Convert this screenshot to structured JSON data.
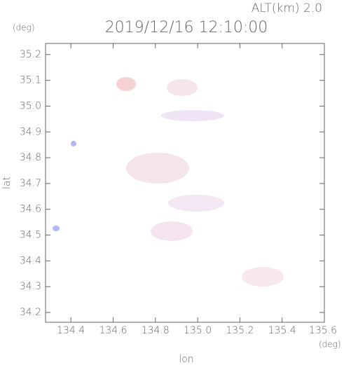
{
  "chart_data": {
    "type": "field",
    "title": "2019/12/16 12:10:00",
    "subtitle": "ALT(km) 2.0",
    "x_label": "lon",
    "y_label": "lat",
    "x_unit": "(deg)",
    "y_unit": "(deg)",
    "xlim": [
      134.28,
      135.6
    ],
    "ylim": [
      34.162,
      35.243
    ],
    "xticks": [
      134.4,
      134.6,
      134.8,
      {
        "value": 135.0,
        "label": "135.0"
      },
      135.2,
      135.4,
      135.6
    ],
    "yticks": [
      34.2,
      34.3,
      34.4,
      34.5,
      34.6,
      34.7,
      34.8,
      34.9,
      {
        "value": 35.0,
        "label": "35.0"
      },
      35.1,
      35.2
    ]
  }
}
